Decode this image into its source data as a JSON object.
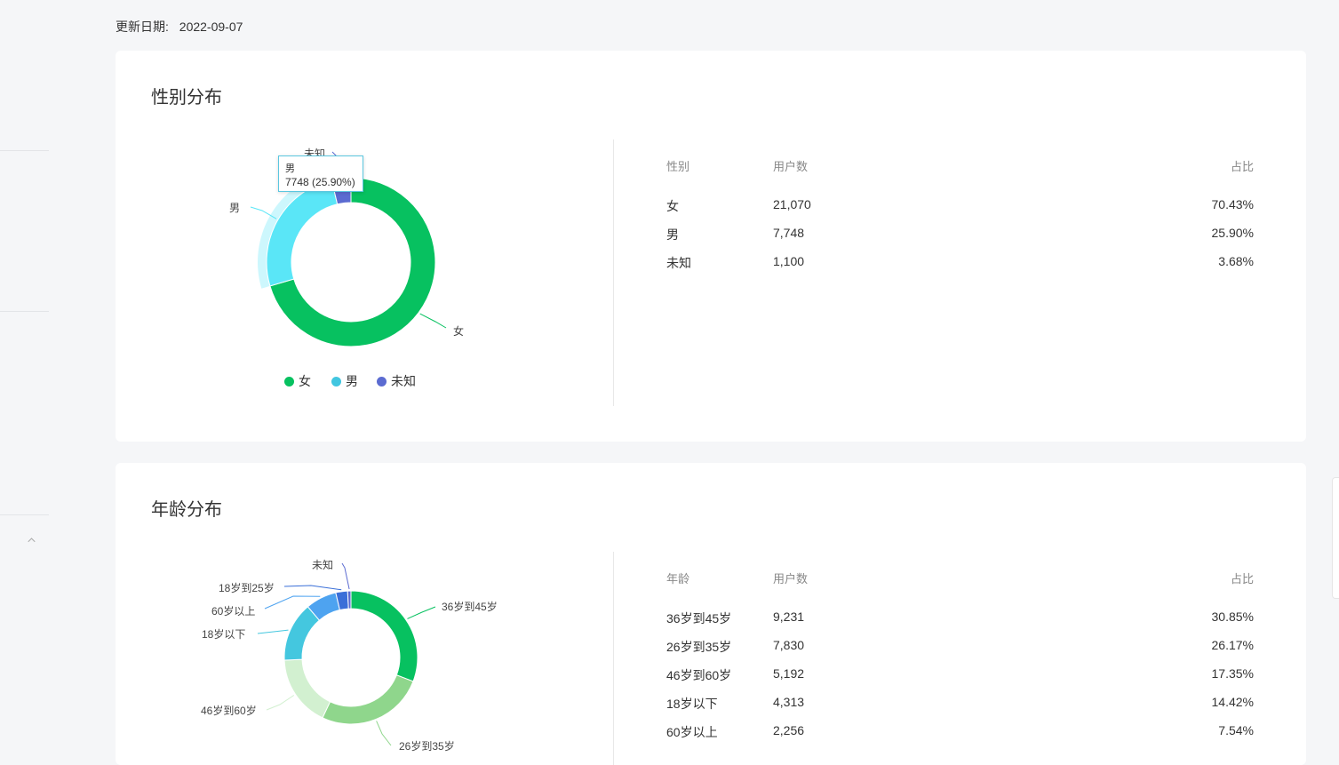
{
  "update": {
    "label": "更新日期:",
    "value": "2022-09-07"
  },
  "gender": {
    "title": "性别分布",
    "table": {
      "headers": [
        "性别",
        "用户数",
        "占比"
      ],
      "rows": [
        {
          "name": "女",
          "count": "21,070",
          "pct": "70.43%"
        },
        {
          "name": "男",
          "count": "7,748",
          "pct": "25.90%"
        },
        {
          "name": "未知",
          "count": "1,100",
          "pct": "3.68%"
        }
      ]
    },
    "tooltip": {
      "name": "男",
      "value": "7748 (25.90%)"
    }
  },
  "age": {
    "title": "年龄分布",
    "table": {
      "headers": [
        "年龄",
        "用户数",
        "占比"
      ],
      "rows": [
        {
          "name": "36岁到45岁",
          "count": "9,231",
          "pct": "30.85%"
        },
        {
          "name": "26岁到35岁",
          "count": "7,830",
          "pct": "26.17%"
        },
        {
          "name": "46岁到60岁",
          "count": "5,192",
          "pct": "17.35%"
        },
        {
          "name": "18岁以下",
          "count": "4,313",
          "pct": "14.42%"
        },
        {
          "name": "60岁以上",
          "count": "2,256",
          "pct": "7.54%"
        }
      ]
    }
  },
  "chart_data": [
    {
      "type": "pie",
      "title": "性别分布",
      "donut": true,
      "legend_position": "bottom",
      "highlighted": "男",
      "categories": [
        "女",
        "男",
        "未知"
      ],
      "values": [
        21070,
        7748,
        1100
      ],
      "colors": [
        "#07c160",
        "#5ae6f7",
        "#5b6bd1"
      ]
    },
    {
      "type": "pie",
      "title": "年龄分布",
      "donut": true,
      "categories": [
        "36岁到45岁",
        "26岁到35岁",
        "46岁到60岁",
        "18岁以下",
        "60岁以上",
        "18岁到25岁",
        "未知"
      ],
      "values": [
        9231,
        7830,
        5192,
        4313,
        2256,
        860,
        240
      ],
      "colors": [
        "#07c160",
        "#8fd68c",
        "#d2f0d0",
        "#44c7df",
        "#4ea3f0",
        "#3a6fd8",
        "#5b6bd1"
      ]
    }
  ]
}
